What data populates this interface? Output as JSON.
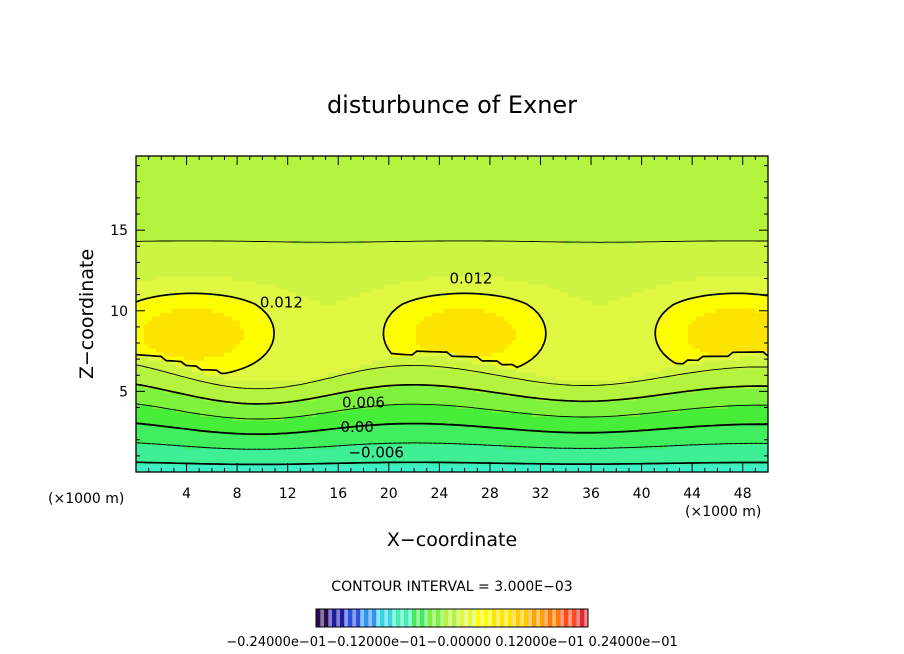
{
  "chart_data": {
    "type": "contour",
    "title": "disturbunce of Exner",
    "xlabel": "X−coordinate",
    "ylabel": "Z−coordinate",
    "x_unit": "(×1000 m)",
    "y_unit": "(×1000 m)",
    "xlim": [
      0,
      50
    ],
    "ylim": [
      0,
      19.6
    ],
    "x_ticks": [
      4,
      8,
      12,
      16,
      20,
      24,
      28,
      32,
      36,
      40,
      44,
      48
    ],
    "y_ticks": [
      5,
      10,
      15
    ],
    "x_tick_labels": [
      "4",
      "8",
      "12",
      "16",
      "20",
      "24",
      "28",
      "32",
      "36",
      "40",
      "44",
      "48"
    ],
    "y_tick_labels": [
      "5",
      "10",
      "15"
    ],
    "contour_interval_label": "CONTOUR INTERVAL = 3.000E−03",
    "contour_labels": [
      {
        "text": "0.012",
        "x": 11.5,
        "z": 10.5
      },
      {
        "text": "0.012",
        "x": 26.5,
        "z": 12.0
      },
      {
        "text": "0.006",
        "x": 18.0,
        "z": 4.3
      },
      {
        "text": "0.00",
        "x": 17.5,
        "z": 2.8
      },
      {
        "text": "−0.006",
        "x": 19.0,
        "z": 1.2
      }
    ],
    "colorbar": {
      "label_text": "−0.24000e−01−0.12000e−01−0.00000 0.12000e−01 0.24000e−01",
      "min": -0.024,
      "max": 0.024,
      "interval": 0.003
    },
    "colors": {
      "level_scale": [
        "#2a0b52",
        "#1f1aa0",
        "#2a52e0",
        "#2f94f0",
        "#37d4e8",
        "#42f0b4",
        "#42ec5a",
        "#7cf03a",
        "#b8f23a",
        "#e2f83c",
        "#fefe00",
        "#ffe600",
        "#ffcc00",
        "#ffa400",
        "#ff7a00",
        "#ff4a1e",
        "#e22a30"
      ]
    }
  }
}
